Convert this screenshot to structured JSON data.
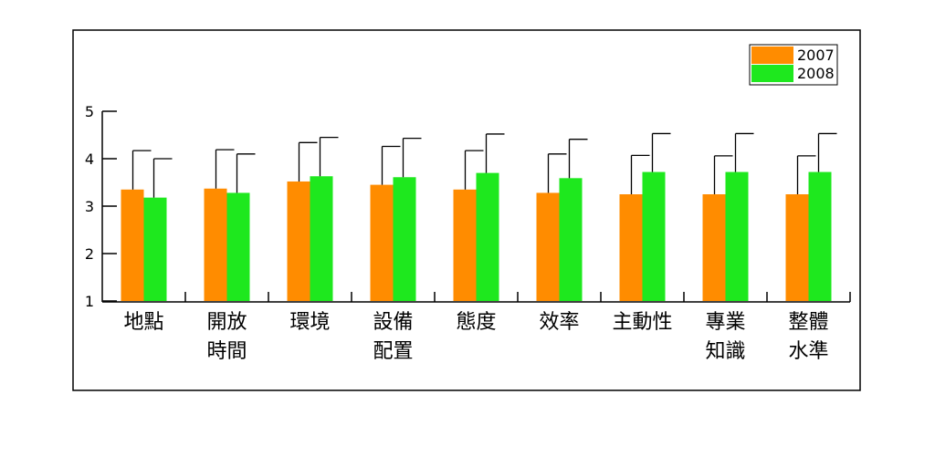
{
  "chart_data": {
    "type": "bar",
    "categories": [
      "地點",
      "開放\n時間",
      "環境",
      "設備\n配置",
      "態度",
      "效率",
      "主動性",
      "專業\n知識",
      "整體\n水準"
    ],
    "series": [
      {
        "name": "2007",
        "color": "#ff8c00",
        "values": [
          3.35,
          3.37,
          3.52,
          3.45,
          3.35,
          3.28,
          3.25,
          3.25,
          3.25
        ],
        "errors": [
          0.82,
          0.82,
          0.82,
          0.81,
          0.82,
          0.82,
          0.82,
          0.81,
          0.81
        ]
      },
      {
        "name": "2008",
        "color": "#1ee81e",
        "values": [
          3.18,
          3.28,
          3.63,
          3.61,
          3.7,
          3.59,
          3.72,
          3.72,
          3.72
        ],
        "errors": [
          0.82,
          0.82,
          0.82,
          0.82,
          0.82,
          0.82,
          0.81,
          0.81,
          0.81
        ]
      }
    ],
    "ylim": [
      1,
      5
    ],
    "yticks": [
      1,
      2,
      3,
      4,
      5
    ],
    "grid": false,
    "legend": "top-right"
  }
}
